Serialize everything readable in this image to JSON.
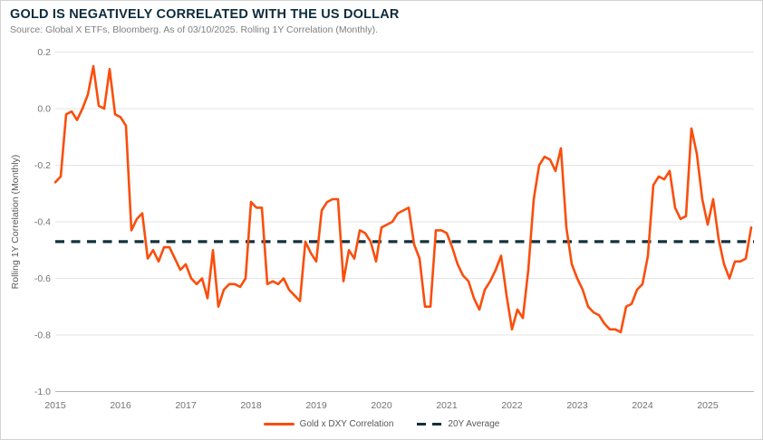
{
  "header": {
    "title": "GOLD IS NEGATIVELY CORRELATED WITH THE US DOLLAR",
    "source": "Source: Global X ETFs, Bloomberg. As of 03/10/2025. Rolling 1Y Correlation (Monthly)."
  },
  "chart_data": {
    "type": "line",
    "title": "GOLD IS NEGATIVELY CORRELATED WITH THE US DOLLAR",
    "xlabel": "",
    "ylabel": "Rolling 1Y Correlation (Monthly)",
    "ylim": [
      -1.0,
      0.2
    ],
    "yticks": [
      0.2,
      0.0,
      -0.2,
      -0.4,
      -0.6,
      -0.8,
      -1.0
    ],
    "x_years": [
      2015,
      2016,
      2017,
      2018,
      2019,
      2020,
      2021,
      2022,
      2023,
      2024,
      2025
    ],
    "start_year": 2015,
    "frequency": "monthly",
    "grid": "horizontal",
    "legend_position": "bottom",
    "series": [
      {
        "name": "Gold x DXY Correlation",
        "style": "solid",
        "values": [
          -0.26,
          -0.24,
          -0.02,
          -0.01,
          -0.04,
          0.0,
          0.05,
          0.15,
          0.01,
          0.0,
          0.14,
          -0.02,
          -0.03,
          -0.06,
          -0.43,
          -0.39,
          -0.37,
          -0.53,
          -0.5,
          -0.54,
          -0.49,
          -0.49,
          -0.53,
          -0.57,
          -0.55,
          -0.6,
          -0.62,
          -0.6,
          -0.67,
          -0.5,
          -0.7,
          -0.64,
          -0.62,
          -0.62,
          -0.63,
          -0.6,
          -0.33,
          -0.35,
          -0.35,
          -0.62,
          -0.61,
          -0.62,
          -0.6,
          -0.64,
          -0.66,
          -0.68,
          -0.47,
          -0.51,
          -0.54,
          -0.36,
          -0.33,
          -0.32,
          -0.32,
          -0.61,
          -0.5,
          -0.53,
          -0.43,
          -0.44,
          -0.47,
          -0.54,
          -0.42,
          -0.41,
          -0.4,
          -0.37,
          -0.36,
          -0.35,
          -0.48,
          -0.53,
          -0.7,
          -0.7,
          -0.43,
          -0.43,
          -0.44,
          -0.49,
          -0.55,
          -0.59,
          -0.61,
          -0.67,
          -0.71,
          -0.64,
          -0.61,
          -0.57,
          -0.52,
          -0.66,
          -0.78,
          -0.71,
          -0.74,
          -0.57,
          -0.32,
          -0.2,
          -0.17,
          -0.18,
          -0.22,
          -0.14,
          -0.42,
          -0.55,
          -0.6,
          -0.64,
          -0.7,
          -0.72,
          -0.73,
          -0.76,
          -0.78,
          -0.78,
          -0.79,
          -0.7,
          -0.69,
          -0.64,
          -0.62,
          -0.52,
          -0.27,
          -0.24,
          -0.25,
          -0.22,
          -0.35,
          -0.39,
          -0.38,
          -0.07,
          -0.16,
          -0.32,
          -0.41,
          -0.32,
          -0.46,
          -0.55,
          -0.6,
          -0.54,
          -0.54,
          -0.53,
          -0.42
        ]
      },
      {
        "name": "20Y Average",
        "style": "dashed",
        "value": -0.47
      }
    ]
  },
  "colors": {
    "accent_orange": "#fa4e0c",
    "navy": "#14303c",
    "title_text": "#0e2c3d",
    "muted_text": "#7f7f7f",
    "axis_text": "#737373",
    "gridline": "#e4e4e4",
    "axis_line": "#b3b3b3",
    "border": "#d2d2d2",
    "background": "#ffffff"
  }
}
